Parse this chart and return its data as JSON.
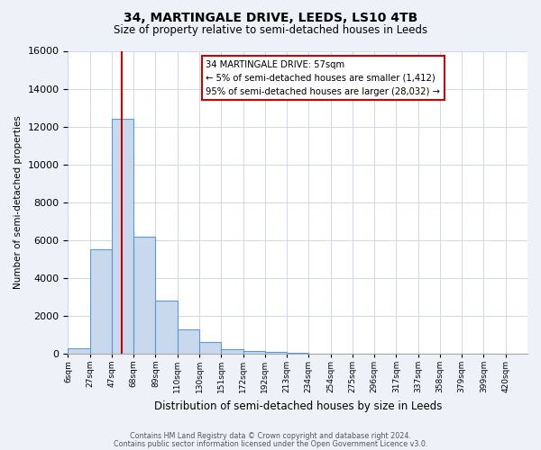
{
  "title": "34, MARTINGALE DRIVE, LEEDS, LS10 4TB",
  "subtitle": "Size of property relative to semi-detached houses in Leeds",
  "xlabel": "Distribution of semi-detached houses by size in Leeds",
  "ylabel": "Number of semi-detached properties",
  "bar_labels": [
    "6sqm",
    "27sqm",
    "47sqm",
    "68sqm",
    "89sqm",
    "110sqm",
    "130sqm",
    "151sqm",
    "172sqm",
    "192sqm",
    "213sqm",
    "234sqm",
    "254sqm",
    "275sqm",
    "296sqm",
    "317sqm",
    "337sqm",
    "358sqm",
    "379sqm",
    "399sqm",
    "420sqm"
  ],
  "bar_values": [
    300,
    5500,
    12400,
    6200,
    2800,
    1300,
    600,
    250,
    150,
    100,
    50,
    0,
    0,
    0,
    0,
    0,
    0,
    0,
    0,
    0,
    0
  ],
  "bar_color": "#c9d9ed",
  "bar_edge_color": "#5b9bd5",
  "vline_color": "#cc0000",
  "vline_pos": 2.476,
  "annotation_line1": "34 MARTINGALE DRIVE: 57sqm",
  "annotation_line2": "← 5% of semi-detached houses are smaller (1,412)",
  "annotation_line3": "95% of semi-detached houses are larger (28,032) →",
  "annotation_box_edge": "#cc0000",
  "ylim": [
    0,
    16000
  ],
  "yticks": [
    0,
    2000,
    4000,
    6000,
    8000,
    10000,
    12000,
    14000,
    16000
  ],
  "footnote1": "Contains HM Land Registry data © Crown copyright and database right 2024.",
  "footnote2": "Contains public sector information licensed under the Open Government Licence v3.0.",
  "bg_color": "#eef2f8",
  "plot_bg_color": "#ffffff"
}
